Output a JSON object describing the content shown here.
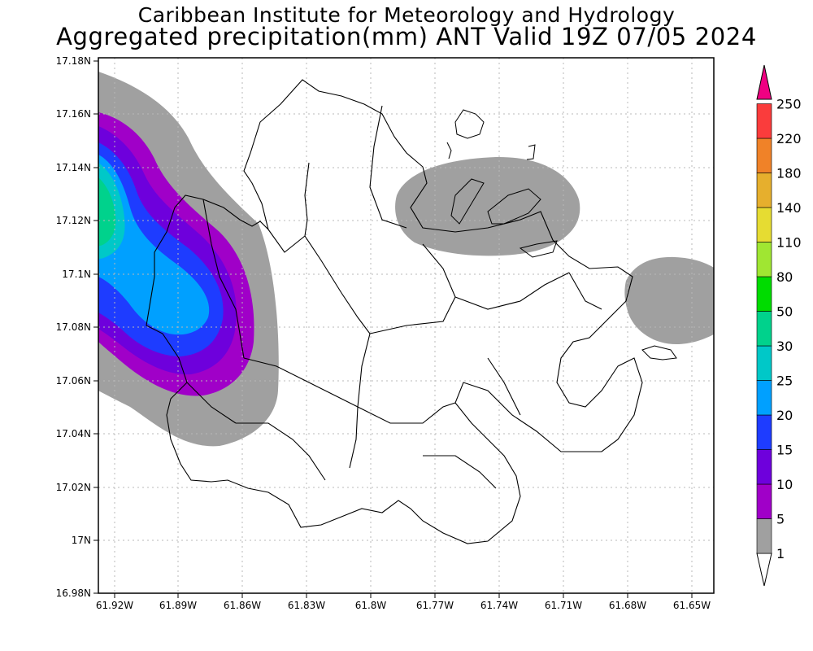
{
  "title_line1": "Caribbean Institute for Meteorology and Hydrology",
  "title_line2": "Aggregated precipitation(mm) ANT Valid 19Z 07/05 2024",
  "map": {
    "lon_range": [
      -61.93,
      -61.64
    ],
    "lat_range": [
      16.98,
      17.18
    ],
    "lon_ticks": [
      "61.92W",
      "61.89W",
      "61.86W",
      "61.83W",
      "61.8W",
      "61.77W",
      "61.74W",
      "61.71W",
      "61.68W",
      "61.65W"
    ],
    "lat_ticks": [
      "17.18N",
      "17.16N",
      "17.14N",
      "17.12N",
      "17.1N",
      "17.08N",
      "17.06N",
      "17.04N",
      "17.02N",
      "17N",
      "16.98N"
    ],
    "grid": true
  },
  "colorbar": {
    "levels": [
      "1",
      "5",
      "10",
      "15",
      "20",
      "25",
      "30",
      "50",
      "80",
      "110",
      "140",
      "180",
      "220",
      "250"
    ],
    "colors": [
      "#a0a0a0",
      "#a000c8",
      "#6e00dc",
      "#1e3cff",
      "#00a0ff",
      "#00c8c8",
      "#00d28c",
      "#00dc00",
      "#a0e632",
      "#e6dc32",
      "#e6af2d",
      "#f08228",
      "#fa3c3c",
      "#f00082"
    ]
  }
}
